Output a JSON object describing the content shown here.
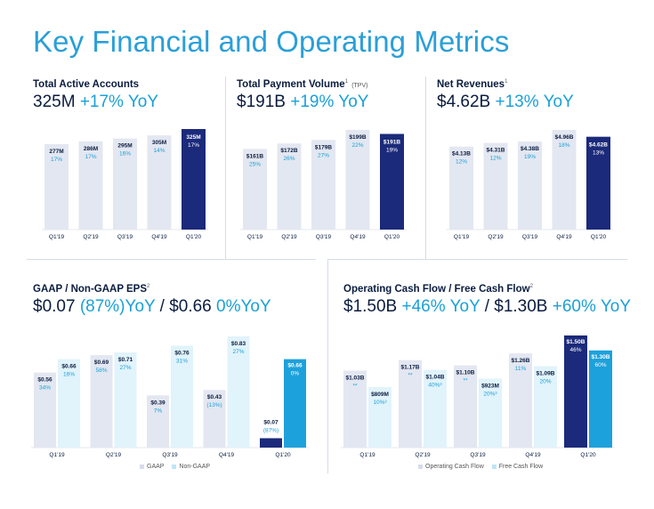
{
  "title": "Key Financial and Operating Metrics",
  "colors": {
    "light_bar": "#e3e7f1",
    "dark_bar": "#1b2a7a",
    "light_blue_bar": "#e1f3fb",
    "bright_blue_bar": "#1da1dc",
    "label_dark": "#0a1c3f",
    "label_blue": "#1aa0d8",
    "axis": "#0a1c3f"
  },
  "panels": {
    "accounts": {
      "label": "Total Active Accounts",
      "headline": {
        "value": "325M",
        "growth": "+17%",
        "yoy": "YoY"
      }
    },
    "tpv": {
      "label": "Total Payment Volume",
      "sup": "1",
      "suffix": "(TPV)",
      "headline": {
        "value": "$191B",
        "growth": "+19%",
        "yoy": "YoY"
      }
    },
    "revenue": {
      "label": "Net Revenues",
      "sup": "1",
      "headline": {
        "value": "$4.62B",
        "growth": "+13%",
        "yoy": "YoY"
      }
    },
    "eps": {
      "label": "GAAP / Non-GAAP EPS",
      "sup": "2",
      "headline": {
        "v1": "$0.07",
        "g1": "(87%)",
        "yoy1": "YoY",
        "sep": "/",
        "v2": "$0.66",
        "g2": "0%",
        "yoy2": "YoY"
      },
      "legend": [
        "GAAP",
        "Non-GAAP"
      ]
    },
    "cashflow": {
      "label": "Operating Cash Flow / Free Cash Flow",
      "sup": "2",
      "headline": {
        "v1": "$1.50B",
        "g1": "+46%",
        "yoy1": "YoY",
        "sep": "/",
        "v2": "$1.30B",
        "g2": "+60%",
        "yoy2": "YoY"
      },
      "legend": [
        "Operating Cash Flow",
        "Free Cash Flow"
      ]
    }
  },
  "chart_data": [
    {
      "id": "accounts",
      "type": "bar",
      "title": "Total Active Accounts",
      "categories": [
        "Q1'19",
        "Q2'19",
        "Q3'19",
        "Q4'19",
        "Q1'20"
      ],
      "values": [
        277,
        286,
        295,
        305,
        325
      ],
      "value_labels": [
        "277M",
        "286M",
        "295M",
        "305M",
        "325M"
      ],
      "growth_labels": [
        "17%",
        "17%",
        "16%",
        "14%",
        "17%"
      ],
      "ylim": [
        150,
        325
      ],
      "unit": "M"
    },
    {
      "id": "tpv",
      "type": "bar",
      "title": "Total Payment Volume (TPV)",
      "categories": [
        "Q1'19",
        "Q2'19",
        "Q3'19",
        "Q4'19",
        "Q1'20"
      ],
      "values": [
        161,
        172,
        179,
        199,
        191
      ],
      "value_labels": [
        "$161B",
        "$172B",
        "$179B",
        "$199B",
        "$191B"
      ],
      "growth_labels": [
        "25%",
        "26%",
        "27%",
        "22%",
        "19%"
      ],
      "ylim": [
        0,
        199
      ],
      "unit": "$B"
    },
    {
      "id": "revenue",
      "type": "bar",
      "title": "Net Revenues",
      "categories": [
        "Q1'19",
        "Q2'19",
        "Q3'19",
        "Q4'19",
        "Q1'20"
      ],
      "values": [
        4.13,
        4.31,
        4.38,
        4.96,
        4.62
      ],
      "value_labels": [
        "$4.13B",
        "$4.31B",
        "$4.38B",
        "$4.96B",
        "$4.62B"
      ],
      "growth_labels": [
        "12%",
        "12%",
        "19%",
        "18%",
        "13%"
      ],
      "ylim": [
        0,
        4.96
      ],
      "unit": "$B"
    },
    {
      "id": "eps",
      "type": "bar",
      "title": "GAAP / Non-GAAP EPS",
      "categories": [
        "Q1'19",
        "Q2'19",
        "Q3'19",
        "Q4'19",
        "Q1'20"
      ],
      "series": [
        {
          "name": "GAAP",
          "values": [
            0.56,
            0.69,
            0.39,
            0.43,
            0.07
          ],
          "value_labels": [
            "$0.56",
            "$0.69",
            "$0.39",
            "$0.43",
            "$0.07"
          ],
          "growth_labels": [
            "34%",
            "58%",
            "7%",
            "(13%)",
            "(87%)"
          ]
        },
        {
          "name": "Non-GAAP",
          "values": [
            0.66,
            0.71,
            0.76,
            0.83,
            0.66
          ],
          "value_labels": [
            "$0.66",
            "$0.71",
            "$0.76",
            "$0.83",
            "$0.66"
          ],
          "growth_labels": [
            "16%",
            "27%",
            "31%",
            "27%",
            "0%"
          ]
        }
      ],
      "ylim": [
        0,
        0.83
      ],
      "legend": "bottom-right"
    },
    {
      "id": "cashflow",
      "type": "bar",
      "title": "Operating Cash Flow / Free Cash Flow",
      "categories": [
        "Q1'19",
        "Q2'19",
        "Q3'19",
        "Q4'19",
        "Q1'20"
      ],
      "series": [
        {
          "name": "Operating Cash Flow",
          "values": [
            1.03,
            1.17,
            1.1,
            1.26,
            1.5
          ],
          "value_labels": [
            "$1.03B",
            "$1.17B",
            "$1.10B",
            "$1.26B",
            "$1.50B"
          ],
          "growth_labels": [
            "**",
            "**",
            "**",
            "11%",
            "46%"
          ]
        },
        {
          "name": "Free Cash Flow",
          "values": [
            0.809,
            1.04,
            0.923,
            1.09,
            1.3
          ],
          "value_labels": [
            "$809M",
            "$1.04B",
            "$923M",
            "$1.09B",
            "$1.30B"
          ],
          "growth_labels": [
            "10%³",
            "40%³",
            "20%³",
            "20%",
            "60%"
          ]
        }
      ],
      "ylim": [
        0,
        1.5
      ],
      "legend": "bottom-right"
    }
  ]
}
